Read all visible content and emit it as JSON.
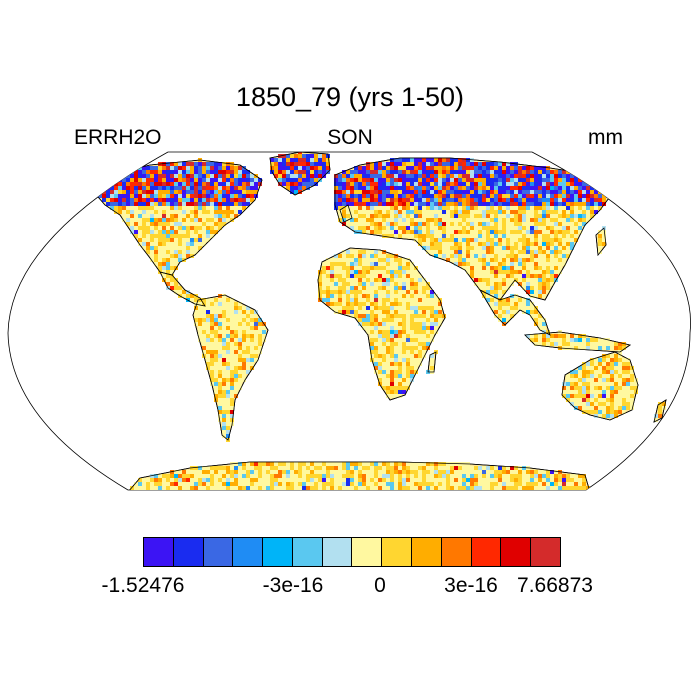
{
  "title": "1850_79 (yrs 1-50)",
  "left_label": "ERRH2O",
  "center_label": "SON",
  "right_label": "mm",
  "colorbar": {
    "colors": [
      "#3c14f4",
      "#1a2cf0",
      "#3a68e4",
      "#1f8cf4",
      "#00b4f8",
      "#5ac8f0",
      "#b2e0f0",
      "#fff8a0",
      "#ffd630",
      "#ffad00",
      "#ff7800",
      "#ff2800",
      "#e00000",
      "#d42b2b"
    ],
    "labels": [
      "-1.52476",
      "-3e-16",
      "0",
      "3e-16",
      "7.66873"
    ]
  },
  "map": {
    "projection": "Robinson",
    "background": "#ffffff",
    "land_base_color": "#ffe89a"
  }
}
